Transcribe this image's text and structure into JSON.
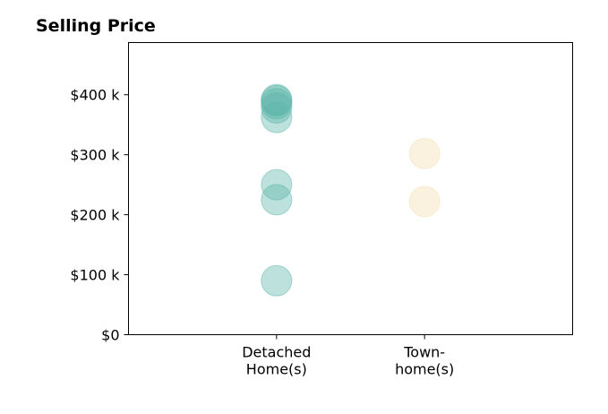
{
  "chart_data": {
    "type": "scatter",
    "title": "Selling Price",
    "xlabel": "",
    "ylabel": "",
    "categories": [
      [
        "Detached",
        "Home(s)"
      ],
      [
        "Town-",
        "home(s)"
      ]
    ],
    "y_ticks": [
      {
        "value": 0,
        "label": "$0"
      },
      {
        "value": 100000,
        "label": "$100 k"
      },
      {
        "value": 200000,
        "label": "$200 k"
      },
      {
        "value": 300000,
        "label": "$300 k"
      },
      {
        "value": 400000,
        "label": "$400 k"
      }
    ],
    "ylim": [
      0,
      487000
    ],
    "xlim": [
      0,
      3
    ],
    "grid": false,
    "legend": "none",
    "series": [
      {
        "category_index": 0,
        "color": "#5bb5a8",
        "values": [
          90000,
          225000,
          250000,
          362000,
          378000,
          385000,
          390000,
          392000
        ]
      },
      {
        "category_index": 1,
        "color": "#f3dfb0",
        "values": [
          222000,
          302000
        ]
      }
    ]
  }
}
